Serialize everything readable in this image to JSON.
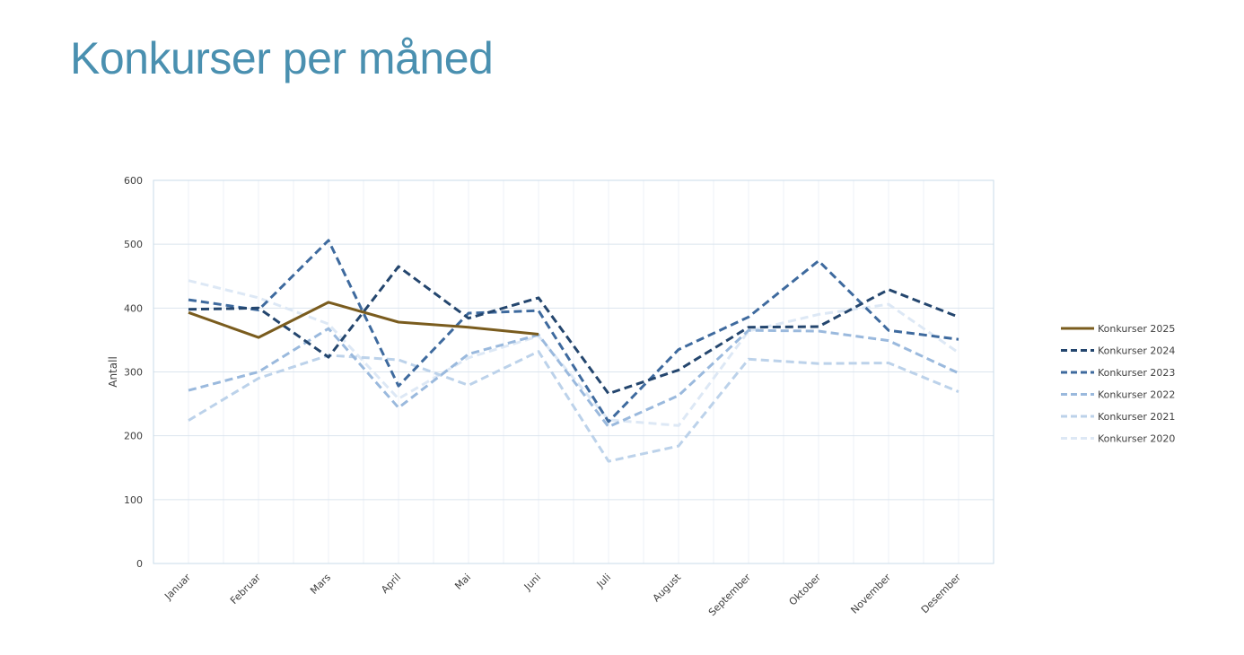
{
  "page": {
    "title": "Konkurser per måned"
  },
  "chart_data": {
    "type": "line",
    "title": "",
    "xlabel": "",
    "ylabel": "Antall",
    "ylim": [
      0,
      600
    ],
    "yticks": [
      0,
      100,
      200,
      300,
      400,
      500,
      600
    ],
    "grid": true,
    "legend_position": "right",
    "categories": [
      "Januar",
      "Februar",
      "Mars",
      "April",
      "Mai",
      "Juni",
      "Juli",
      "August",
      "September",
      "Oktober",
      "November",
      "Desember"
    ],
    "series": [
      {
        "name": "Konkurser 2025",
        "color": "#7a5c1e",
        "dashed": false,
        "values": [
          393,
          354,
          409,
          378,
          370,
          359,
          null,
          null,
          null,
          null,
          null,
          null
        ]
      },
      {
        "name": "Konkurser 2024",
        "color": "#24466e",
        "dashed": true,
        "values": [
          398,
          400,
          323,
          465,
          384,
          416,
          266,
          303,
          370,
          371,
          429,
          386
        ]
      },
      {
        "name": "Konkurser 2023",
        "color": "#3e6a9e",
        "dashed": true,
        "values": [
          413,
          397,
          506,
          278,
          392,
          396,
          222,
          335,
          386,
          474,
          365,
          351
        ]
      },
      {
        "name": "Konkurser 2022",
        "color": "#9ab9dd",
        "dashed": true,
        "values": [
          271,
          300,
          368,
          244,
          328,
          358,
          214,
          263,
          365,
          364,
          349,
          298
        ]
      },
      {
        "name": "Konkurser 2021",
        "color": "#bcd2ea",
        "dashed": true,
        "values": [
          224,
          290,
          326,
          319,
          279,
          332,
          160,
          184,
          320,
          313,
          314,
          269
        ]
      },
      {
        "name": "Konkurser 2020",
        "color": "#dde8f5",
        "dashed": true,
        "values": [
          443,
          416,
          375,
          258,
          322,
          356,
          225,
          216,
          364,
          390,
          406,
          330
        ]
      }
    ]
  }
}
